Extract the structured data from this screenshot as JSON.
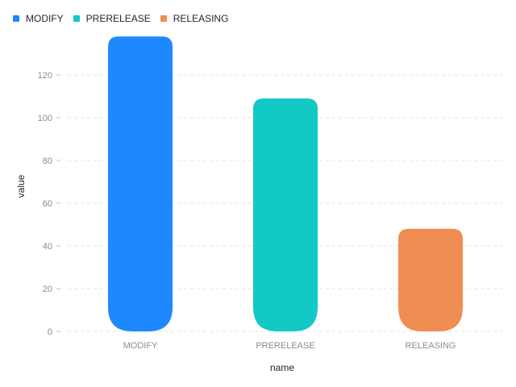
{
  "legend": {
    "items": [
      {
        "label": "MODIFY",
        "color": "#1E88FF"
      },
      {
        "label": "PRERELEASE",
        "color": "#12C9C6"
      },
      {
        "label": "RELEASING",
        "color": "#F08D52"
      }
    ]
  },
  "chart_data": {
    "type": "bar",
    "categories": [
      "MODIFY",
      "PRERELEASE",
      "RELEASING"
    ],
    "values": [
      138,
      109,
      48
    ],
    "colors": [
      "#1E88FF",
      "#12C9C6",
      "#F08D52"
    ],
    "xlabel": "name",
    "ylabel": "value",
    "ylim": [
      0,
      140
    ],
    "yticks": [
      0,
      20,
      40,
      60,
      80,
      100,
      120
    ],
    "grid": true,
    "legend_position": "top-left"
  }
}
